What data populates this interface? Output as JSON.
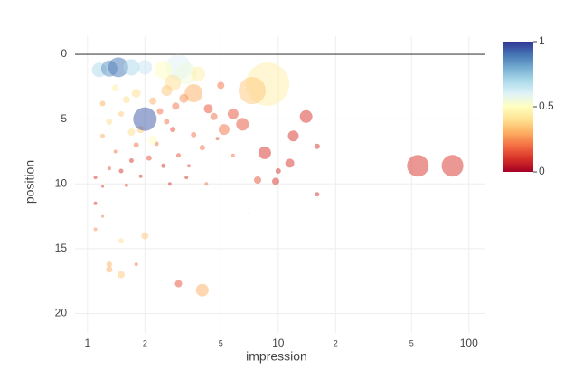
{
  "chart_data": {
    "type": "scatter",
    "x_label": "impression",
    "y_label": "position",
    "xlog": true,
    "y_reversed": true,
    "grid": true,
    "zeroline": true,
    "opacity": 0.5,
    "xlim": [
      0.86,
      122
    ],
    "ylim": [
      21.5,
      -1.4
    ],
    "xticks": [
      1,
      2,
      5,
      10,
      {
        "value": 20,
        "label": "2"
      },
      {
        "value": 50,
        "label": "5"
      },
      100
    ],
    "yticks": [
      0,
      5,
      10,
      15,
      20
    ],
    "colorscale": [
      "#a50026",
      "#d73027",
      "#f46d43",
      "#fdae61",
      "#fee090",
      "#ffffbf",
      "#e0f3f8",
      "#abd9e9",
      "#74add1",
      "#4575b4",
      "#313695"
    ],
    "colorbar": {
      "range": [
        0,
        1
      ],
      "ticks": [
        0,
        0.5,
        1
      ]
    },
    "series": [
      {
        "x": [
          8.8,
          7.3,
          54,
          82,
          1.15,
          1.3,
          1.45,
          1.7,
          2.0,
          3.0,
          3.3,
          2.5,
          3.8,
          3.6,
          2.8,
          14,
          12,
          8.5,
          7.8,
          9.7,
          11.5,
          16,
          16,
          10,
          6.5,
          5.8,
          5.2,
          5.0,
          4.3,
          4.6,
          4,
          3.0,
          2.0,
          1.5,
          1.3,
          1.5,
          1.3,
          1.8,
          1.1,
          1.2,
          1.3,
          1.4,
          1.5,
          1.6,
          1.7,
          1.8,
          1.9,
          2.1,
          2.3,
          2.5,
          2.7,
          3.0,
          3.3,
          3.6,
          1.2,
          1.3,
          1.5,
          1.6,
          1.2,
          1.4,
          1.8,
          2.2,
          2.4,
          2.6,
          1.1,
          1.2,
          1.1,
          1.7,
          2.2,
          1.9,
          2.9,
          3.2,
          2.6,
          4.0,
          4.8,
          5.8,
          4.2,
          3.4,
          7,
          2.8,
          2.0
        ],
        "values": [
          2.3,
          2.8,
          8.6,
          8.6,
          1.2,
          1.1,
          1.0,
          1.0,
          1.0,
          1.0,
          1.5,
          1.2,
          1.5,
          3.0,
          2.2,
          4.8,
          6.3,
          7.6,
          9.7,
          9.8,
          8.4,
          7.1,
          10.8,
          9,
          5.4,
          4.6,
          5.8,
          2.4,
          4.2,
          4.8,
          18.2,
          17.7,
          14,
          17,
          16.6,
          14.4,
          16.2,
          16.2,
          9.5,
          10.2,
          8.8,
          7.5,
          9.0,
          10.1,
          8.2,
          7.0,
          9.4,
          8.0,
          6.9,
          8.6,
          10,
          7.8,
          9.5,
          6.2,
          6.3,
          5.2,
          4.6,
          3.5,
          3.8,
          2.6,
          3.0,
          3.6,
          4.4,
          5.2,
          11.5,
          12.5,
          13.5,
          6.0,
          6.6,
          5.8,
          4.0,
          3.4,
          2.8,
          7.2,
          6.5,
          7.8,
          10.0,
          8.6,
          12.3,
          5.8,
          5.0
        ],
        "sizes": [
          48,
          30,
          24,
          24,
          16,
          18,
          22,
          18,
          16,
          28,
          24,
          20,
          16,
          20,
          18,
          14,
          12,
          14,
          8,
          8,
          10,
          6,
          5,
          6,
          14,
          12,
          12,
          8,
          10,
          8,
          14,
          8,
          8,
          8,
          7,
          6,
          6,
          4,
          4,
          3,
          4,
          4,
          5,
          4,
          5,
          6,
          4,
          6,
          5,
          5,
          4,
          5,
          4,
          6,
          5,
          7,
          6,
          8,
          6,
          8,
          10,
          8,
          7,
          6,
          4,
          3,
          4,
          8,
          10,
          8,
          8,
          10,
          12,
          6,
          4,
          4,
          4,
          4,
          2,
          6,
          26
        ],
        "colors": [
          0.45,
          0.35,
          0.1,
          0.1,
          0.7,
          0.85,
          0.9,
          0.7,
          0.65,
          0.6,
          0.55,
          0.5,
          0.45,
          0.3,
          0.4,
          0.1,
          0.1,
          0.1,
          0.15,
          0.1,
          0.1,
          0.1,
          0.1,
          0.1,
          0.15,
          0.15,
          0.2,
          0.2,
          0.15,
          0.2,
          0.3,
          0.15,
          0.35,
          0.35,
          0.3,
          0.4,
          0.3,
          0.2,
          0.1,
          0.1,
          0.15,
          0.2,
          0.1,
          0.15,
          0.1,
          0.2,
          0.1,
          0.15,
          0.2,
          0.1,
          0.1,
          0.15,
          0.1,
          0.2,
          0.3,
          0.4,
          0.35,
          0.4,
          0.3,
          0.45,
          0.4,
          0.3,
          0.2,
          0.2,
          0.1,
          0.2,
          0.25,
          0.4,
          0.5,
          0.35,
          0.2,
          0.25,
          0.35,
          0.2,
          0.15,
          0.2,
          0.2,
          0.15,
          0.3,
          0.15,
          0.95
        ]
      }
    ]
  }
}
